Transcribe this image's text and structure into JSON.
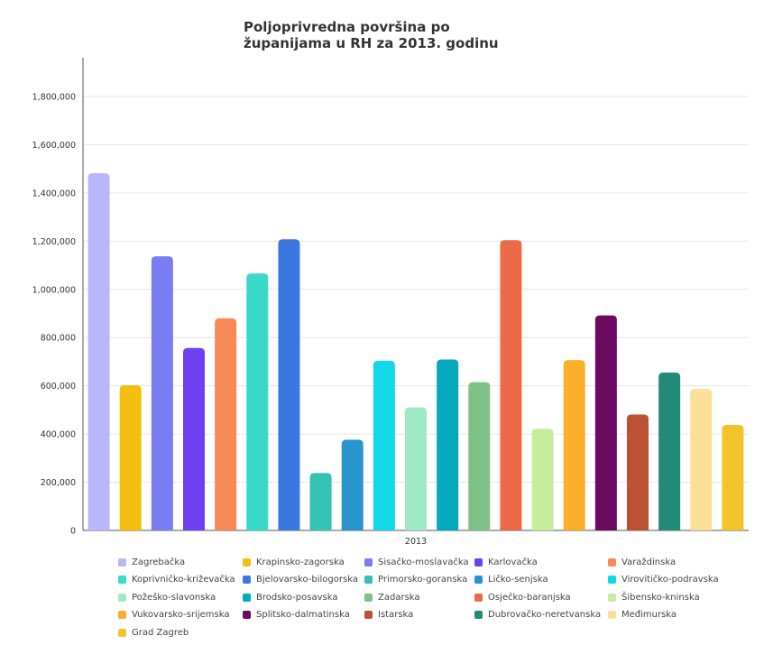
{
  "chart_data": {
    "type": "bar",
    "title": "Poljoprivredna površina po županijama u RH za 2013. godinu",
    "categories": [
      "2013"
    ],
    "ylim": [
      0,
      1800000
    ],
    "yticks": [
      0,
      200000,
      400000,
      600000,
      800000,
      1000000,
      1200000,
      1400000,
      1600000,
      1800000
    ],
    "ytick_labels": [
      "0",
      "200,000",
      "400,000",
      "600,000",
      "800,000",
      "1,000,000",
      "1,200,000",
      "1,400,000",
      "1,600,000",
      "1,800,000"
    ],
    "grid": true,
    "legend_position": "bottom",
    "series": [
      {
        "name": "Zagrebačka",
        "color": "#b8b8f8",
        "values": [
          1482000
        ]
      },
      {
        "name": "Krapinsko-zagorska",
        "color": "#f2bf0e",
        "values": [
          602000
        ]
      },
      {
        "name": "Sisačko-moslavačka",
        "color": "#7a7cf2",
        "values": [
          1137000
        ]
      },
      {
        "name": "Karlovačka",
        "color": "#6e40f2",
        "values": [
          757000
        ]
      },
      {
        "name": "Varaždinska",
        "color": "#f58a57",
        "values": [
          880000
        ]
      },
      {
        "name": "Koprivničko-križevačka",
        "color": "#39d9c9",
        "values": [
          1066000
        ]
      },
      {
        "name": "Bjelovarsko-bilogorska",
        "color": "#3a78e0",
        "values": [
          1208000
        ]
      },
      {
        "name": "Primorsko-goranska",
        "color": "#33c2b3",
        "values": [
          238000
        ]
      },
      {
        "name": "Ličko-senjska",
        "color": "#2a94cf",
        "values": [
          376000
        ]
      },
      {
        "name": "Virovitičko-podravska",
        "color": "#12d8e8",
        "values": [
          704000
        ]
      },
      {
        "name": "Požeško-slavonska",
        "color": "#9fe9c6",
        "values": [
          511000
        ]
      },
      {
        "name": "Brodsko-posavska",
        "color": "#06a8be",
        "values": [
          709000
        ]
      },
      {
        "name": "Zadarska",
        "color": "#80c089",
        "values": [
          615000
        ]
      },
      {
        "name": "Osječko-baranjska",
        "color": "#ec6a48",
        "values": [
          1204000
        ]
      },
      {
        "name": "Šibensko-kninska",
        "color": "#c7ec9c",
        "values": [
          422000
        ]
      },
      {
        "name": "Vukovarsko-srijemska",
        "color": "#fbaf2a",
        "values": [
          707000
        ]
      },
      {
        "name": "Splitsko-dalmatinska",
        "color": "#6b0b5f",
        "values": [
          892000
        ]
      },
      {
        "name": "Istarska",
        "color": "#bb5232",
        "values": [
          481000
        ]
      },
      {
        "name": "Dubrovačko-neretvanska",
        "color": "#238a78",
        "values": [
          655000
        ]
      },
      {
        "name": "Međimurska",
        "color": "#fbdf96",
        "values": [
          587000
        ]
      },
      {
        "name": "Grad Zagreb",
        "color": "#f2c42a",
        "values": [
          438000
        ]
      }
    ]
  }
}
